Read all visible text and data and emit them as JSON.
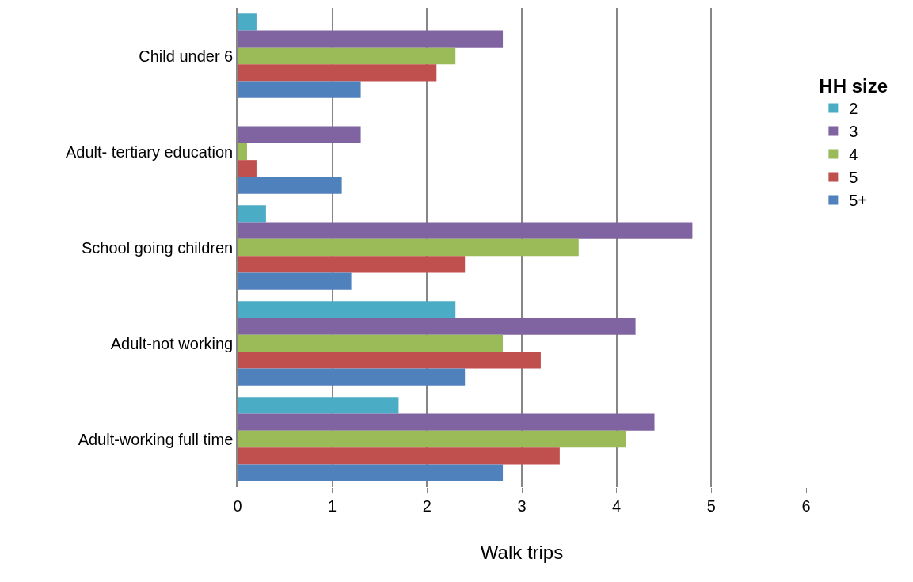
{
  "chart_data": {
    "type": "bar",
    "orientation": "horizontal",
    "xlabel": "Walk trips",
    "legend_title": "HH size",
    "categories": [
      "Child under 6",
      "Adult- tertiary education",
      "School going children",
      "Adult-not working",
      "Adult-working full time"
    ],
    "series": [
      {
        "name": "2",
        "color": "#4bacc6",
        "values": [
          0.2,
          null,
          0.3,
          2.3,
          1.7
        ]
      },
      {
        "name": "3",
        "color": "#8064a2",
        "values": [
          2.8,
          1.3,
          4.8,
          4.2,
          4.4
        ]
      },
      {
        "name": "4",
        "color": "#9bbb59",
        "values": [
          2.3,
          0.1,
          3.6,
          2.8,
          4.1
        ]
      },
      {
        "name": "5",
        "color": "#c0504d",
        "values": [
          2.1,
          0.2,
          2.4,
          3.2,
          3.4
        ]
      },
      {
        "name": "5+",
        "color": "#4f81bd",
        "values": [
          1.3,
          1.1,
          1.2,
          2.4,
          2.8
        ]
      }
    ],
    "xlim": [
      0,
      6
    ],
    "xticks": [
      0,
      1,
      2,
      3,
      4,
      5,
      6
    ],
    "grid": "x",
    "legend": "right"
  }
}
